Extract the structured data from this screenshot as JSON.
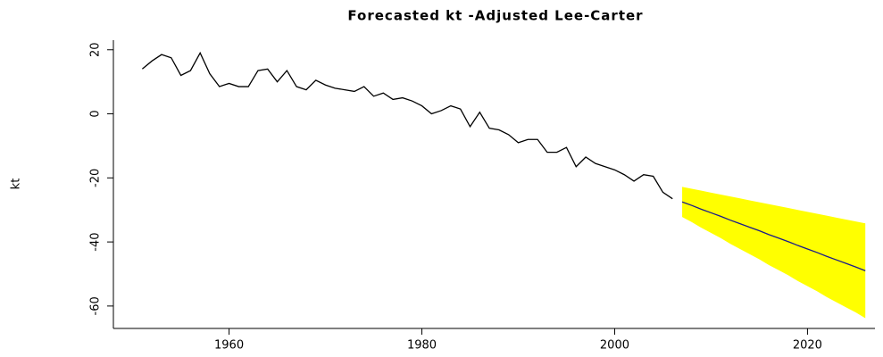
{
  "chart_data": {
    "type": "line",
    "title": "Forecasted kt -Adjusted Lee-Carter",
    "ylabel": "kt",
    "xlim": [
      1948,
      2027
    ],
    "ylim": [
      -67,
      23
    ],
    "xticks": [
      1960,
      1980,
      2000,
      2020
    ],
    "yticks": [
      20,
      0,
      -20,
      -40,
      -60
    ],
    "band": {
      "color": "#ffff00",
      "x": [
        2007,
        2008,
        2009,
        2010,
        2011,
        2012,
        2013,
        2014,
        2015,
        2016,
        2017,
        2018,
        2019,
        2020,
        2021,
        2022,
        2023,
        2024,
        2025,
        2026
      ],
      "upper": [
        -22.8,
        -23.4,
        -24.0,
        -24.6,
        -25.2,
        -25.8,
        -26.4,
        -27.0,
        -27.6,
        -28.2,
        -28.8,
        -29.4,
        -30.0,
        -30.6,
        -31.2,
        -31.8,
        -32.4,
        -33.0,
        -33.6,
        -34.2
      ],
      "lower": [
        -32.2,
        -33.8,
        -35.6,
        -37.2,
        -38.8,
        -40.6,
        -42.2,
        -43.8,
        -45.4,
        -47.2,
        -48.8,
        -50.4,
        -52.2,
        -53.8,
        -55.4,
        -57.2,
        -58.8,
        -60.4,
        -62.0,
        -63.8
      ]
    },
    "series": [
      {
        "color": "#000000",
        "x": [
          1951,
          1952,
          1953,
          1954,
          1955,
          1956,
          1957,
          1958,
          1959,
          1960,
          1961,
          1962,
          1963,
          1964,
          1965,
          1966,
          1967,
          1968,
          1969,
          1970,
          1971,
          1972,
          1973,
          1974,
          1975,
          1976,
          1977,
          1978,
          1979,
          1980,
          1981,
          1982,
          1983,
          1984,
          1985,
          1986,
          1987,
          1988,
          1989,
          1990,
          1991,
          1992,
          1993,
          1994,
          1995,
          1996,
          1997,
          1998,
          1999,
          2000,
          2001,
          2002,
          2003,
          2004,
          2005,
          2006
        ],
        "values": [
          14,
          16.5,
          18.5,
          17.5,
          12,
          13.5,
          19,
          12.5,
          8.5,
          9.5,
          8.5,
          8.5,
          13.5,
          14,
          10,
          13.5,
          8.5,
          7.5,
          10.5,
          9,
          8,
          7.5,
          7,
          8.5,
          5.5,
          6.5,
          4.5,
          5,
          4,
          2.5,
          0,
          1,
          2.5,
          1.5,
          -4,
          0.5,
          -4.5,
          -5,
          -6.5,
          -9,
          -8,
          -8,
          -12,
          -12,
          -10.5,
          -16.5,
          -13.5,
          -15.5,
          -16.5,
          -17.5,
          -19,
          -21,
          -19,
          -19.5,
          -24.5,
          -26.5
        ]
      },
      {
        "color": "#1a1a8c",
        "x": [
          2007,
          2008,
          2009,
          2010,
          2011,
          2012,
          2013,
          2014,
          2015,
          2016,
          2017,
          2018,
          2019,
          2020,
          2021,
          2022,
          2023,
          2024,
          2025,
          2026
        ],
        "values": [
          -27.5,
          -28.6,
          -29.8,
          -30.9,
          -32.0,
          -33.2,
          -34.3,
          -35.4,
          -36.5,
          -37.7,
          -38.8,
          -39.9,
          -41.1,
          -42.2,
          -43.3,
          -44.5,
          -45.6,
          -46.7,
          -47.8,
          -49.0
        ]
      }
    ]
  }
}
